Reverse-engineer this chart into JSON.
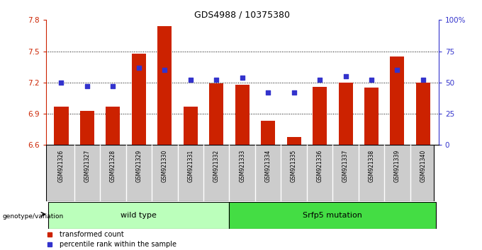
{
  "title": "GDS4988 / 10375380",
  "samples": [
    "GSM921326",
    "GSM921327",
    "GSM921328",
    "GSM921329",
    "GSM921330",
    "GSM921331",
    "GSM921332",
    "GSM921333",
    "GSM921334",
    "GSM921335",
    "GSM921336",
    "GSM921337",
    "GSM921338",
    "GSM921339",
    "GSM921340"
  ],
  "transformed_counts": [
    6.97,
    6.93,
    6.97,
    7.48,
    7.74,
    6.97,
    7.19,
    7.18,
    6.83,
    6.68,
    7.16,
    7.2,
    7.15,
    7.45,
    7.2
  ],
  "percentile_ranks": [
    50,
    47,
    47,
    62,
    60,
    52,
    52,
    54,
    42,
    42,
    52,
    55,
    52,
    60,
    52
  ],
  "ylim_left": [
    6.6,
    7.8
  ],
  "ylim_right": [
    0,
    100
  ],
  "yticks_left": [
    6.6,
    6.9,
    7.2,
    7.5,
    7.8
  ],
  "yticks_right": [
    0,
    25,
    50,
    75,
    100
  ],
  "ytick_labels_left": [
    "6.6",
    "6.9",
    "7.2",
    "7.5",
    "7.8"
  ],
  "ytick_labels_right": [
    "0",
    "25",
    "50",
    "75",
    "100%"
  ],
  "hlines": [
    6.9,
    7.2,
    7.5
  ],
  "bar_color": "#CC2200",
  "dot_color": "#3333CC",
  "bar_width": 0.55,
  "groups": [
    {
      "label": "wild type",
      "start": 0,
      "end": 6,
      "color": "#bbffbb"
    },
    {
      "label": "Srfp5 mutation",
      "start": 7,
      "end": 14,
      "color": "#44dd44"
    }
  ],
  "genotype_label": "genotype/variation",
  "legend_items": [
    {
      "label": "transformed count",
      "color": "#CC2200"
    },
    {
      "label": "percentile rank within the sample",
      "color": "#3333CC"
    }
  ],
  "plot_bg": "#ffffff",
  "sample_bg": "#cccccc",
  "axis_color_left": "#CC2200",
  "axis_color_right": "#3333CC",
  "title_fontsize": 9,
  "tick_fontsize": 7.5,
  "sample_fontsize": 5.5,
  "group_fontsize": 8,
  "legend_fontsize": 7
}
